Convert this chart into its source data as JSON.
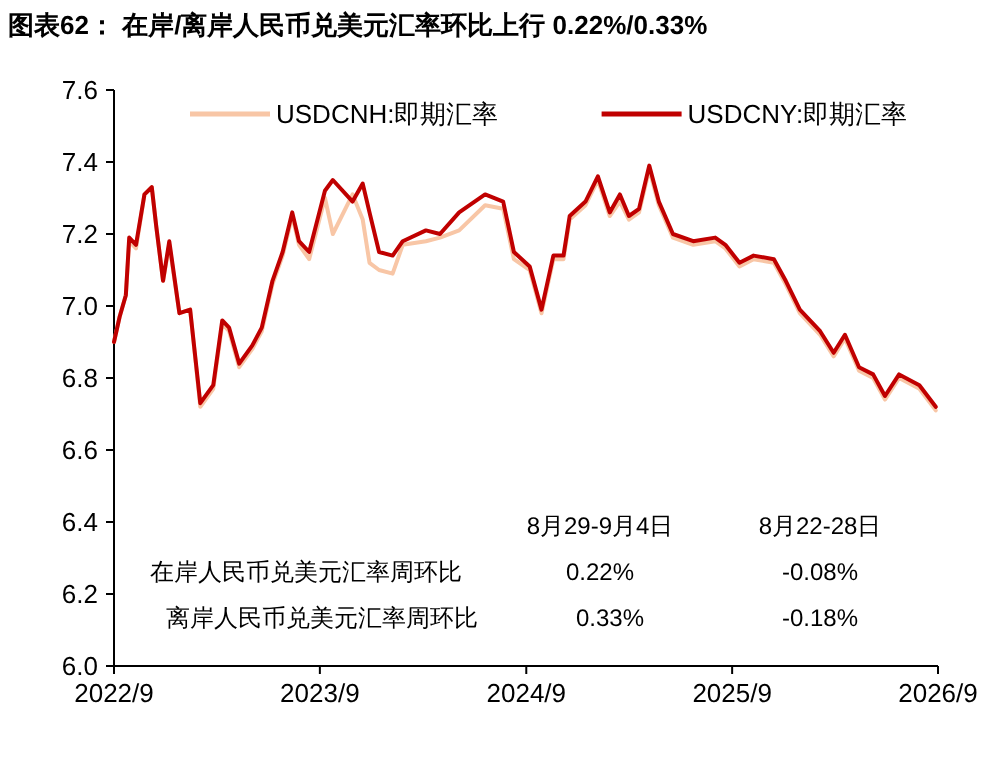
{
  "chart_data": {
    "type": "line",
    "title": "图表62：  在岸/离岸人民币兑美元汇率环比上行 0.22%/0.33%",
    "x": [
      "2022-09-01",
      "2022-09-11",
      "2022-09-22",
      "2022-09-28",
      "2022-10-10",
      "2022-10-25",
      "2022-11-07",
      "2022-11-15",
      "2022-11-27",
      "2022-12-08",
      "2022-12-26",
      "2023-01-14",
      "2023-02-01",
      "2023-02-24",
      "2023-03-12",
      "2023-03-24",
      "2023-04-11",
      "2023-05-04",
      "2023-05-21",
      "2023-06-09",
      "2023-06-27",
      "2023-07-14",
      "2023-07-26",
      "2023-08-13",
      "2023-09-10",
      "2023-09-24",
      "2023-10-29",
      "2023-11-16",
      "2023-11-28",
      "2023-12-15",
      "2024-01-08",
      "2024-01-26",
      "2024-03-07",
      "2024-04-01",
      "2024-05-05",
      "2024-06-20",
      "2024-07-22",
      "2024-08-10",
      "2024-09-07",
      "2024-09-28",
      "2024-10-19",
      "2024-11-06",
      "2024-11-17",
      "2024-12-15",
      "2025-01-06",
      "2025-01-27",
      "2025-02-14",
      "2025-03-02",
      "2025-03-20",
      "2025-04-07",
      "2025-04-24",
      "2025-05-19",
      "2025-06-24",
      "2025-08-02",
      "2025-08-20",
      "2025-09-14",
      "2025-10-09",
      "2025-11-14",
      "2025-12-05",
      "2025-12-30",
      "2026-02-04",
      "2026-02-28",
      "2026-03-20",
      "2026-04-14",
      "2026-05-09",
      "2026-05-30",
      "2026-06-24",
      "2026-07-30",
      "2026-08-28"
    ],
    "series": [
      {
        "name": "USDCNH:即期汇率",
        "color": "#f8c6a6",
        "values": [
          6.9,
          6.97,
          7.03,
          7.18,
          7.16,
          7.31,
          7.33,
          7.22,
          7.07,
          7.17,
          6.98,
          6.99,
          6.72,
          6.77,
          6.95,
          6.93,
          6.83,
          6.88,
          6.93,
          7.06,
          7.14,
          7.25,
          7.17,
          7.13,
          7.3,
          7.2,
          7.31,
          7.24,
          7.12,
          7.1,
          7.09,
          7.17,
          7.18,
          7.19,
          7.21,
          7.28,
          7.27,
          7.13,
          7.1,
          6.98,
          7.13,
          7.13,
          7.24,
          7.28,
          7.35,
          7.25,
          7.29,
          7.24,
          7.26,
          7.38,
          7.28,
          7.19,
          7.17,
          7.18,
          7.16,
          7.11,
          7.13,
          7.12,
          7.06,
          6.98,
          6.92,
          6.86,
          6.91,
          6.82,
          6.8,
          6.74,
          6.8,
          6.77,
          6.71
        ]
      },
      {
        "name": "USDCNY:即期汇率",
        "color": "#c00000",
        "values": [
          6.9,
          6.97,
          7.03,
          7.19,
          7.17,
          7.31,
          7.33,
          7.22,
          7.07,
          7.18,
          6.98,
          6.99,
          6.73,
          6.78,
          6.96,
          6.94,
          6.84,
          6.89,
          6.94,
          7.07,
          7.15,
          7.26,
          7.18,
          7.15,
          7.32,
          7.35,
          7.29,
          7.34,
          7.26,
          7.15,
          7.14,
          7.18,
          7.21,
          7.2,
          7.26,
          7.31,
          7.29,
          7.15,
          7.11,
          6.99,
          7.14,
          7.14,
          7.25,
          7.29,
          7.36,
          7.26,
          7.31,
          7.25,
          7.27,
          7.39,
          7.29,
          7.2,
          7.18,
          7.19,
          7.17,
          7.12,
          7.14,
          7.13,
          7.07,
          6.99,
          6.93,
          6.87,
          6.92,
          6.83,
          6.81,
          6.75,
          6.81,
          6.78,
          6.72
        ]
      }
    ],
    "xlim": [
      "2022-09-01",
      "2026-09-01"
    ],
    "xticks": [
      {
        "value": "2022-09-01",
        "label": "2022/9"
      },
      {
        "value": "2023-09-01",
        "label": "2023/9"
      },
      {
        "value": "2024-09-01",
        "label": "2024/9"
      },
      {
        "value": "2025-09-01",
        "label": "2025/9"
      },
      {
        "value": "2026-09-01",
        "label": "2026/9"
      }
    ],
    "ylim": [
      6.0,
      7.6
    ],
    "yticks": [
      {
        "value": 6.0,
        "label": "6.0"
      },
      {
        "value": 6.2,
        "label": "6.2"
      },
      {
        "value": 6.4,
        "label": "6.4"
      },
      {
        "value": 6.6,
        "label": "6.6"
      },
      {
        "value": 6.8,
        "label": "6.8"
      },
      {
        "value": 7.0,
        "label": "7.0"
      },
      {
        "value": 7.2,
        "label": "7.2"
      },
      {
        "value": 7.4,
        "label": "7.4"
      },
      {
        "value": 7.6,
        "label": "7.6"
      }
    ],
    "legend": "top",
    "grid": false,
    "annotations": [
      "8月29-9月4日",
      "8月22-28日",
      "在岸人民币兑美元汇率周环比",
      "0.22%",
      "-0.08%",
      "离岸人民币兑美元汇率周环比",
      "0.33%",
      "-0.18%"
    ]
  }
}
